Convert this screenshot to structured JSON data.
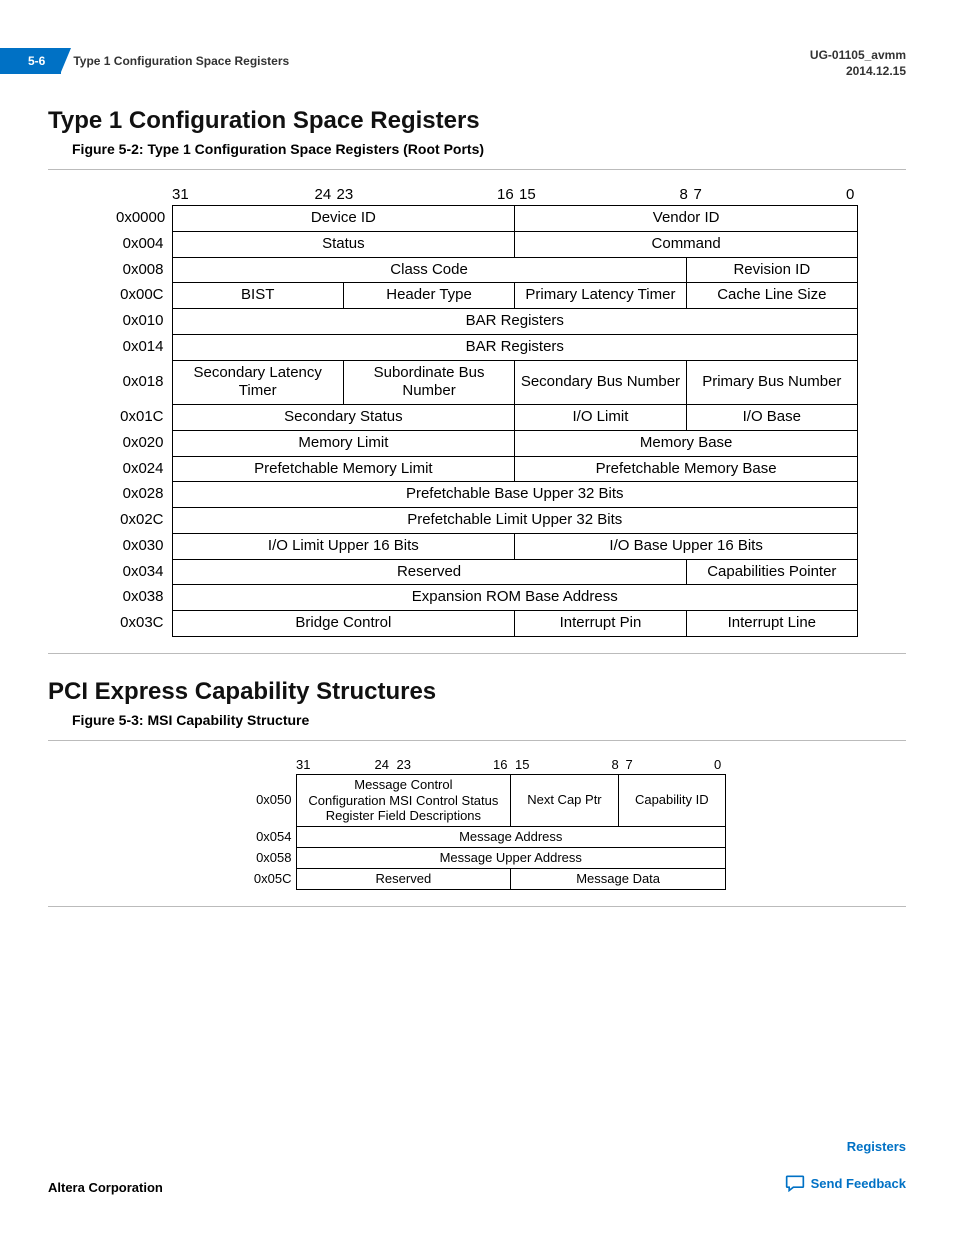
{
  "header": {
    "page_num": "5-6",
    "breadcrumb": "Type 1 Configuration Space Registers",
    "doc_id": "UG-01105_avmm",
    "date": "2014.12.15"
  },
  "section1": {
    "title": "Type 1 Configuration Space Registers",
    "figure_caption": "Figure 5-2: Type 1 Configuration Space Registers (Root Ports)",
    "bit_labels": {
      "b31": "31",
      "b24": "24",
      "b23": "23",
      "b16": "16",
      "b15": "15",
      "b8": "8",
      "b7": "7",
      "b0": "0"
    },
    "rows": [
      {
        "addr": "0x0000",
        "cells": [
          {
            "span": 2,
            "text": "Device ID"
          },
          {
            "span": 2,
            "text": "Vendor ID"
          }
        ]
      },
      {
        "addr": "0x004",
        "cells": [
          {
            "span": 2,
            "text": "Status"
          },
          {
            "span": 2,
            "text": "Command"
          }
        ]
      },
      {
        "addr": "0x008",
        "cells": [
          {
            "span": 3,
            "text": "Class Code"
          },
          {
            "span": 1,
            "text": "Revision ID"
          }
        ]
      },
      {
        "addr": "0x00C",
        "cells": [
          {
            "span": 1,
            "text": "BIST"
          },
          {
            "span": 1,
            "text": "Header Type"
          },
          {
            "span": 1,
            "text": "Primary Latency Timer"
          },
          {
            "span": 1,
            "text": "Cache Line Size"
          }
        ]
      },
      {
        "addr": "0x010",
        "cells": [
          {
            "span": 4,
            "text": "BAR Registers"
          }
        ]
      },
      {
        "addr": "0x014",
        "cells": [
          {
            "span": 4,
            "text": "BAR Registers"
          }
        ]
      },
      {
        "addr": "0x018",
        "cells": [
          {
            "span": 1,
            "text": "Secondary Latency Timer"
          },
          {
            "span": 1,
            "text": "Subordinate Bus Number"
          },
          {
            "span": 1,
            "text": "Secondary Bus Number"
          },
          {
            "span": 1,
            "text": "Primary Bus Number"
          }
        ]
      },
      {
        "addr": "0x01C",
        "cells": [
          {
            "span": 2,
            "text": "Secondary Status"
          },
          {
            "span": 1,
            "text": "I/O Limit"
          },
          {
            "span": 1,
            "text": "I/O Base"
          }
        ]
      },
      {
        "addr": "0x020",
        "cells": [
          {
            "span": 2,
            "text": "Memory Limit"
          },
          {
            "span": 2,
            "text": "Memory Base"
          }
        ]
      },
      {
        "addr": "0x024",
        "cells": [
          {
            "span": 2,
            "text": "Prefetchable Memory Limit"
          },
          {
            "span": 2,
            "text": "Prefetchable Memory Base"
          }
        ]
      },
      {
        "addr": "0x028",
        "cells": [
          {
            "span": 4,
            "text": "Prefetchable Base Upper 32 Bits"
          }
        ]
      },
      {
        "addr": "0x02C",
        "cells": [
          {
            "span": 4,
            "text": "Prefetchable Limit Upper 32 Bits"
          }
        ]
      },
      {
        "addr": "0x030",
        "cells": [
          {
            "span": 2,
            "text": "I/O Limit Upper 16 Bits"
          },
          {
            "span": 2,
            "text": "I/O Base Upper 16 Bits"
          }
        ]
      },
      {
        "addr": "0x034",
        "cells": [
          {
            "span": 3,
            "text": "Reserved"
          },
          {
            "span": 1,
            "text": "Capabilities Pointer"
          }
        ]
      },
      {
        "addr": "0x038",
        "cells": [
          {
            "span": 4,
            "text": "Expansion ROM Base Address"
          }
        ]
      },
      {
        "addr": "0x03C",
        "cells": [
          {
            "span": 2,
            "text": "Bridge Control"
          },
          {
            "span": 1,
            "text": "Interrupt Pin"
          },
          {
            "span": 1,
            "text": "Interrupt Line"
          }
        ]
      }
    ]
  },
  "section2": {
    "title": "PCI Express Capability Structures",
    "figure_caption": "Figure 5-3: MSI Capability Structure",
    "bit_labels": {
      "b31": "31",
      "b24": "24",
      "b23": "23",
      "b16": "16",
      "b15": "15",
      "b8": "8",
      "b7": "7",
      "b0": "0"
    },
    "rows": [
      {
        "addr": "0x050",
        "cells": [
          {
            "span": 2,
            "text": "Message Control\nConfiguration MSI Control Status\nRegister Field Descriptions"
          },
          {
            "span": 1,
            "text": "Next Cap Ptr"
          },
          {
            "span": 1,
            "text": "Capability ID"
          }
        ]
      },
      {
        "addr": "0x054",
        "cells": [
          {
            "span": 4,
            "text": "Message Address"
          }
        ]
      },
      {
        "addr": "0x058",
        "cells": [
          {
            "span": 4,
            "text": "Message Upper Address"
          }
        ]
      },
      {
        "addr": "0x05C",
        "cells": [
          {
            "span": 2,
            "text": "Reserved"
          },
          {
            "span": 2,
            "text": "Message Data"
          }
        ]
      }
    ]
  },
  "footer": {
    "company": "Altera Corporation",
    "link_registers": "Registers",
    "link_feedback": "Send Feedback"
  },
  "colors": {
    "accent": "#0071c5",
    "text": "#000000",
    "rule": "#bbbbbb"
  }
}
